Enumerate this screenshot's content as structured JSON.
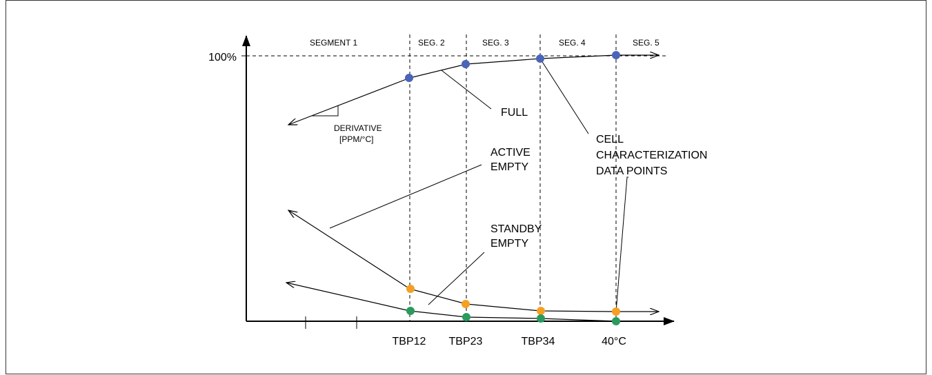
{
  "diagram": {
    "y_axis_label": "100%",
    "segments": [
      "SEGMENT 1",
      "SEG. 2",
      "SEG. 3",
      "SEG. 4",
      "SEG. 5"
    ],
    "x_ticks": [
      "TBP12",
      "TBP23",
      "TBP34",
      "40°C"
    ],
    "derivative_label": [
      "DERIVATIVE",
      "[PPM/°C]"
    ],
    "curves": {
      "full": "FULL",
      "active_empty": [
        "ACTIVE",
        "EMPTY"
      ],
      "standby_empty": [
        "STANDBY",
        "EMPTY"
      ]
    },
    "data_points_label": [
      "CELL",
      "CHARACTERIZATION",
      "DATA POINTS"
    ],
    "colors": {
      "full_points": "#4a64b8",
      "active_points": "#f5a023",
      "standby_points": "#2a9a5e",
      "lines": "#000000"
    }
  }
}
